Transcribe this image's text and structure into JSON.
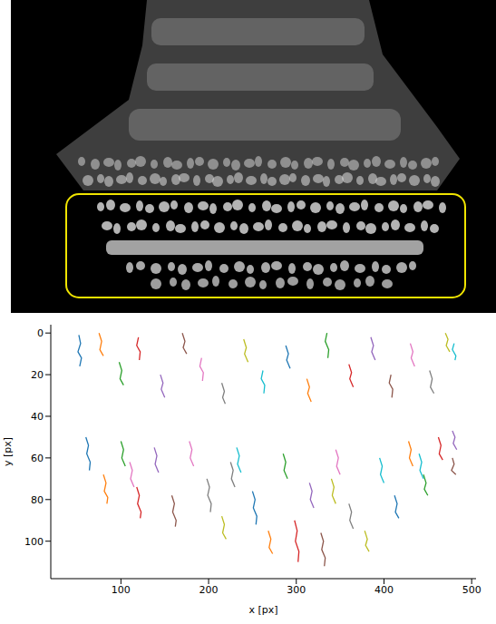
{
  "chart_data": {
    "type": "line",
    "x_label": "x [px]",
    "y_label": "y [px]",
    "xlim": [
      20,
      505
    ],
    "ylim": [
      -4,
      118
    ],
    "xticks": [
      100,
      200,
      300,
      400,
      500
    ],
    "yticks": [
      0,
      20,
      40,
      60,
      80,
      100
    ],
    "grid": false,
    "series": [
      {
        "color": "#1f77b4",
        "x": [
          52,
          54,
          51,
          55,
          53
        ],
        "values": [
          1,
          5,
          9,
          12,
          16
        ]
      },
      {
        "color": "#ff7f0e",
        "x": [
          75,
          78,
          76,
          80
        ],
        "values": [
          0,
          4,
          8,
          11
        ]
      },
      {
        "color": "#2ca02c",
        "x": [
          98,
          101,
          99,
          103
        ],
        "values": [
          14,
          18,
          22,
          25
        ]
      },
      {
        "color": "#d62728",
        "x": [
          120,
          118,
          122,
          121
        ],
        "values": [
          2,
          6,
          9,
          13
        ]
      },
      {
        "color": "#9467bd",
        "x": [
          145,
          148,
          146,
          150
        ],
        "values": [
          20,
          24,
          27,
          31
        ]
      },
      {
        "color": "#8c564b",
        "x": [
          170,
          173,
          171,
          175
        ],
        "values": [
          0,
          4,
          7,
          10
        ]
      },
      {
        "color": "#e377c2",
        "x": [
          192,
          190,
          194,
          193
        ],
        "values": [
          12,
          16,
          19,
          23
        ]
      },
      {
        "color": "#7f7f7f",
        "x": [
          215,
          218,
          216,
          219
        ],
        "values": [
          24,
          28,
          31,
          34
        ]
      },
      {
        "color": "#bcbd22",
        "x": [
          240,
          243,
          241,
          245
        ],
        "values": [
          3,
          7,
          10,
          14
        ]
      },
      {
        "color": "#17becf",
        "x": [
          262,
          260,
          264,
          263
        ],
        "values": [
          18,
          22,
          25,
          29
        ]
      },
      {
        "color": "#1f77b4",
        "x": [
          288,
          291,
          289,
          293
        ],
        "values": [
          6,
          10,
          13,
          17
        ]
      },
      {
        "color": "#ff7f0e",
        "x": [
          312,
          315,
          313,
          317
        ],
        "values": [
          22,
          26,
          29,
          33
        ]
      },
      {
        "color": "#2ca02c",
        "x": [
          335,
          333,
          337,
          336
        ],
        "values": [
          0,
          4,
          8,
          12
        ]
      },
      {
        "color": "#d62728",
        "x": [
          360,
          363,
          361,
          365
        ],
        "values": [
          15,
          19,
          22,
          26
        ]
      },
      {
        "color": "#9467bd",
        "x": [
          385,
          388,
          386,
          390
        ],
        "values": [
          2,
          6,
          9,
          13
        ]
      },
      {
        "color": "#8c564b",
        "x": [
          408,
          406,
          410,
          409
        ],
        "values": [
          20,
          24,
          27,
          31
        ]
      },
      {
        "color": "#e377c2",
        "x": [
          430,
          433,
          431,
          435
        ],
        "values": [
          5,
          9,
          12,
          16
        ]
      },
      {
        "color": "#7f7f7f",
        "x": [
          452,
          455,
          453,
          457
        ],
        "values": [
          18,
          22,
          26,
          29
        ]
      },
      {
        "color": "#bcbd22",
        "x": [
          470,
          473,
          471,
          475
        ],
        "values": [
          0,
          3,
          6,
          9
        ]
      },
      {
        "color": "#17becf",
        "x": [
          480,
          478,
          482,
          481
        ],
        "values": [
          5,
          8,
          11,
          13
        ]
      },
      {
        "color": "#1f77b4",
        "x": [
          60,
          63,
          61,
          65,
          64
        ],
        "values": [
          50,
          54,
          58,
          62,
          66
        ]
      },
      {
        "color": "#ff7f0e",
        "x": [
          80,
          83,
          81,
          85,
          84
        ],
        "values": [
          68,
          72,
          76,
          79,
          82
        ]
      },
      {
        "color": "#2ca02c",
        "x": [
          100,
          103,
          101,
          105
        ],
        "values": [
          52,
          56,
          60,
          64
        ]
      },
      {
        "color": "#d62728",
        "x": [
          118,
          121,
          119,
          123,
          122
        ],
        "values": [
          74,
          78,
          82,
          86,
          89
        ]
      },
      {
        "color": "#9467bd",
        "x": [
          138,
          141,
          139,
          143
        ],
        "values": [
          55,
          59,
          63,
          67
        ]
      },
      {
        "color": "#8c564b",
        "x": [
          158,
          161,
          159,
          163,
          162
        ],
        "values": [
          78,
          82,
          86,
          90,
          93
        ]
      },
      {
        "color": "#e377c2",
        "x": [
          178,
          181,
          179,
          183
        ],
        "values": [
          52,
          56,
          60,
          64
        ]
      },
      {
        "color": "#7f7f7f",
        "x": [
          198,
          201,
          199,
          203,
          202
        ],
        "values": [
          70,
          74,
          78,
          82,
          86
        ]
      },
      {
        "color": "#bcbd22",
        "x": [
          215,
          218,
          216,
          220
        ],
        "values": [
          88,
          92,
          96,
          99
        ]
      },
      {
        "color": "#17becf",
        "x": [
          232,
          235,
          233,
          237
        ],
        "values": [
          55,
          59,
          63,
          67
        ]
      },
      {
        "color": "#1f77b4",
        "x": [
          250,
          253,
          251,
          255,
          254
        ],
        "values": [
          76,
          80,
          84,
          88,
          92
        ]
      },
      {
        "color": "#ff7f0e",
        "x": [
          268,
          271,
          269,
          273
        ],
        "values": [
          95,
          99,
          103,
          106
        ]
      },
      {
        "color": "#2ca02c",
        "x": [
          285,
          288,
          286,
          290
        ],
        "values": [
          58,
          62,
          66,
          70
        ]
      },
      {
        "color": "#d62728",
        "x": [
          298,
          301,
          299,
          303,
          302
        ],
        "values": [
          90,
          95,
          100,
          105,
          110
        ]
      },
      {
        "color": "#9467bd",
        "x": [
          315,
          318,
          316,
          320
        ],
        "values": [
          72,
          76,
          80,
          84
        ]
      },
      {
        "color": "#8c564b",
        "x": [
          328,
          331,
          329,
          333,
          332
        ],
        "values": [
          96,
          100,
          104,
          108,
          112
        ]
      },
      {
        "color": "#e377c2",
        "x": [
          345,
          348,
          346,
          350
        ],
        "values": [
          56,
          60,
          64,
          68
        ]
      },
      {
        "color": "#7f7f7f",
        "x": [
          360,
          363,
          361,
          365
        ],
        "values": [
          82,
          86,
          90,
          94
        ]
      },
      {
        "color": "#bcbd22",
        "x": [
          378,
          381,
          379,
          383
        ],
        "values": [
          95,
          99,
          102,
          105
        ]
      },
      {
        "color": "#17becf",
        "x": [
          395,
          398,
          396,
          400
        ],
        "values": [
          60,
          64,
          68,
          72
        ]
      },
      {
        "color": "#1f77b4",
        "x": [
          412,
          415,
          413,
          417
        ],
        "values": [
          78,
          82,
          86,
          89
        ]
      },
      {
        "color": "#ff7f0e",
        "x": [
          428,
          431,
          429,
          433
        ],
        "values": [
          52,
          56,
          60,
          64
        ]
      },
      {
        "color": "#2ca02c",
        "x": [
          445,
          448,
          446,
          450
        ],
        "values": [
          68,
          72,
          75,
          78
        ]
      },
      {
        "color": "#d62728",
        "x": [
          462,
          465,
          463,
          467
        ],
        "values": [
          50,
          54,
          58,
          61
        ]
      },
      {
        "color": "#9467bd",
        "x": [
          478,
          481,
          479,
          483
        ],
        "values": [
          47,
          50,
          53,
          56
        ]
      },
      {
        "color": "#8c564b",
        "x": [
          478,
          480,
          477,
          482
        ],
        "values": [
          60,
          63,
          66,
          68
        ]
      },
      {
        "color": "#e377c2",
        "x": [
          110,
          113,
          111,
          115
        ],
        "values": [
          62,
          66,
          70,
          74
        ]
      },
      {
        "color": "#7f7f7f",
        "x": [
          225,
          228,
          226,
          230
        ],
        "values": [
          62,
          66,
          70,
          74
        ]
      },
      {
        "color": "#bcbd22",
        "x": [
          340,
          343,
          341,
          345
        ],
        "values": [
          70,
          74,
          78,
          82
        ]
      },
      {
        "color": "#17becf",
        "x": [
          440,
          443,
          441,
          445
        ],
        "values": [
          58,
          62,
          66,
          70
        ]
      }
    ]
  }
}
